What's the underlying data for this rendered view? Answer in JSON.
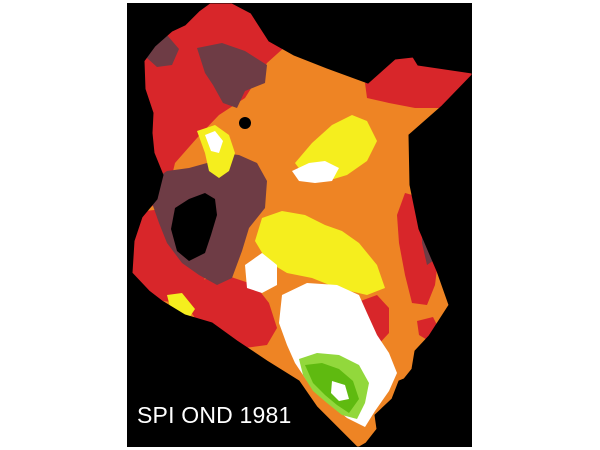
{
  "map": {
    "caption": "SPI OND 1981",
    "background_color": "#000000",
    "palette": {
      "maroon": "#6e3c45",
      "red": "#d8262a",
      "orange": "#ee8424",
      "yellow": "#f5ee1e",
      "white": "#ffffff",
      "light_green": "#92d83c",
      "green": "#5fba10"
    }
  }
}
